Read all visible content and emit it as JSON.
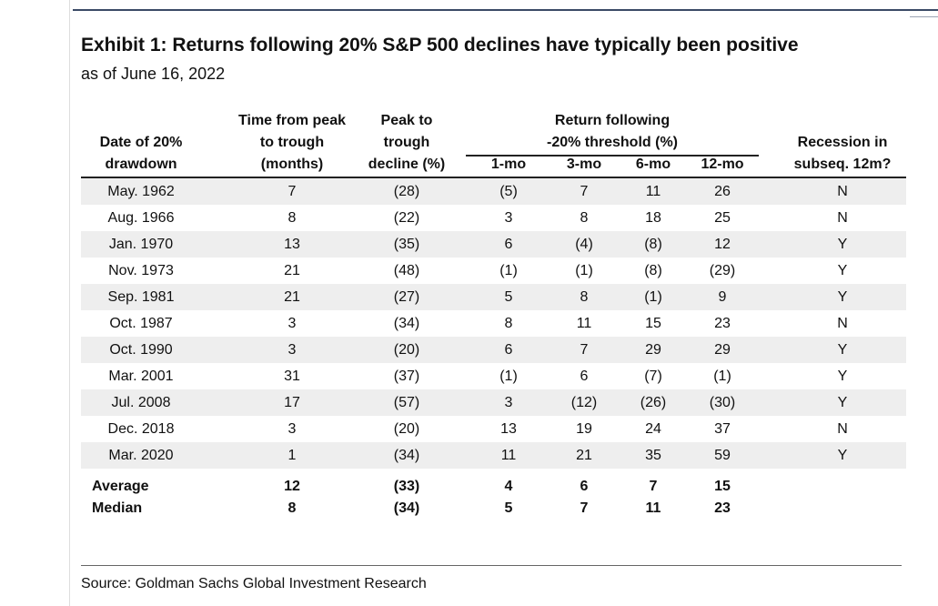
{
  "title": "Exhibit 1: Returns following 20% S&P 500 declines have typically been positive",
  "subtitle": "as of June 16, 2022",
  "source": "Source: Goldman Sachs Global Investment Research",
  "headers": {
    "date": [
      "Date of 20%",
      "drawdown"
    ],
    "time": [
      "Time from peak",
      "to trough",
      "(months)"
    ],
    "peak": [
      "Peak to",
      "trough",
      "decline (%)"
    ],
    "return_group": [
      "Return following",
      "-20% threshold (%)"
    ],
    "m1": "1-mo",
    "m3": "3-mo",
    "m6": "6-mo",
    "m12": "12-mo",
    "recession": [
      "Recession in",
      "subseq. 12m?"
    ]
  },
  "chart_data": {
    "type": "table",
    "columns": [
      "Date of 20% drawdown",
      "Time from peak to trough (months)",
      "Peak to trough decline (%)",
      "1-mo",
      "3-mo",
      "6-mo",
      "12-mo",
      "Recession in subseq. 12m?"
    ],
    "rows": [
      [
        "May. 1962",
        "7",
        "(28)",
        "(5)",
        "7",
        "11",
        "26",
        "N"
      ],
      [
        "Aug. 1966",
        "8",
        "(22)",
        "3",
        "8",
        "18",
        "25",
        "N"
      ],
      [
        "Jan. 1970",
        "13",
        "(35)",
        "6",
        "(4)",
        "(8)",
        "12",
        "Y"
      ],
      [
        "Nov. 1973",
        "21",
        "(48)",
        "(1)",
        "(1)",
        "(8)",
        "(29)",
        "Y"
      ],
      [
        "Sep. 1981",
        "21",
        "(27)",
        "5",
        "8",
        "(1)",
        "9",
        "Y"
      ],
      [
        "Oct. 1987",
        "3",
        "(34)",
        "8",
        "11",
        "15",
        "23",
        "N"
      ],
      [
        "Oct. 1990",
        "3",
        "(20)",
        "6",
        "7",
        "29",
        "29",
        "Y"
      ],
      [
        "Mar. 2001",
        "31",
        "(37)",
        "(1)",
        "6",
        "(7)",
        "(1)",
        "Y"
      ],
      [
        "Jul. 2008",
        "17",
        "(57)",
        "3",
        "(12)",
        "(26)",
        "(30)",
        "Y"
      ],
      [
        "Dec. 2018",
        "3",
        "(20)",
        "13",
        "19",
        "24",
        "37",
        "N"
      ],
      [
        "Mar. 2020",
        "1",
        "(34)",
        "11",
        "21",
        "35",
        "59",
        "Y"
      ]
    ],
    "summary": [
      [
        "Average",
        "12",
        "(33)",
        "4",
        "6",
        "7",
        "15",
        ""
      ],
      [
        "Median",
        "8",
        "(34)",
        "5",
        "7",
        "11",
        "23",
        ""
      ]
    ]
  },
  "colors": {
    "shade": "#eeeeee",
    "rule": "#222222",
    "accent_line": "#3a4a66"
  }
}
